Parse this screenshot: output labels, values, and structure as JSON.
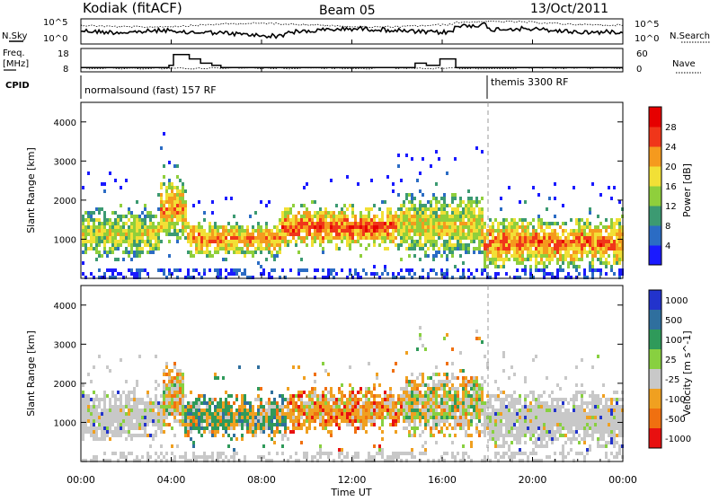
{
  "header": {
    "station": "Kodiak (fitACF)",
    "beam": "Beam 05",
    "date": "13/Oct/2011"
  },
  "top_panels": {
    "nsky_label": "N.Sky",
    "nsearch_label": "N.Search",
    "noise_ticks": [
      "10^5",
      "10^0"
    ],
    "freq_label_1": "Freq.",
    "freq_label_2": "[MHz]",
    "freq_ticks": [
      "18",
      "8"
    ],
    "nave_label": "Nave",
    "nave_ticks": [
      "60",
      "0"
    ],
    "cpid_label": "CPID",
    "cpid_segments": [
      {
        "name": "normalsound (fast) 157 RF",
        "start_hour": 0
      },
      {
        "name": "themis 3300 RF",
        "start_hour": 18
      }
    ],
    "freq_steps": [
      [
        0,
        10
      ],
      [
        3.9,
        11
      ],
      [
        4.1,
        16
      ],
      [
        4.8,
        14
      ],
      [
        5.3,
        12
      ],
      [
        5.8,
        11
      ],
      [
        6.2,
        10
      ],
      [
        14,
        10
      ],
      [
        14.8,
        12
      ],
      [
        15.3,
        11
      ],
      [
        15.9,
        14
      ],
      [
        16.6,
        10
      ],
      [
        18,
        10
      ],
      [
        24,
        10
      ]
    ]
  },
  "chart_data": [
    {
      "type": "heatmap",
      "title": "",
      "quantity": "Power",
      "ylabel": "Slant Range [km]",
      "xlabel": "",
      "ylim": [
        0,
        4500
      ],
      "yticks": [
        "1000",
        "2000",
        "3000",
        "4000"
      ],
      "xlim": [
        0,
        24
      ],
      "colorbar": {
        "label": "Power [dB]",
        "ticks": [
          "4",
          "8",
          "12",
          "16",
          "20",
          "24",
          "28"
        ],
        "colors": [
          "#1a1aff",
          "#2b6cc4",
          "#3c9a72",
          "#8fcf3c",
          "#f2e036",
          "#f59a1e",
          "#f0361a",
          "#e60000"
        ]
      },
      "echo_bands": [
        {
          "x0": 0.0,
          "x1": 3.5,
          "center_km": 1200,
          "width_km": 700,
          "level": 0.55
        },
        {
          "x0": 3.5,
          "x1": 4.6,
          "center_km": 1800,
          "width_km": 900,
          "level": 0.7
        },
        {
          "x0": 4.6,
          "x1": 8.8,
          "center_km": 1050,
          "width_km": 500,
          "level": 0.75
        },
        {
          "x0": 8.8,
          "x1": 14.0,
          "center_km": 1350,
          "width_km": 600,
          "level": 0.85
        },
        {
          "x0": 14.0,
          "x1": 17.8,
          "center_km": 1400,
          "width_km": 900,
          "level": 0.6
        },
        {
          "x0": 17.8,
          "x1": 24.0,
          "center_km": 950,
          "width_km": 700,
          "level": 0.8
        }
      ]
    },
    {
      "type": "heatmap",
      "title": "",
      "quantity": "Velocity",
      "ylabel": "Slant Range [km]",
      "xlabel": "Time UT",
      "ylim": [
        0,
        4500
      ],
      "yticks": [
        "1000",
        "2000",
        "3000",
        "4000"
      ],
      "xlim": [
        0,
        24
      ],
      "xticks": [
        "00:00",
        "04:00",
        "08:00",
        "12:00",
        "16:00",
        "20:00",
        "00:00"
      ],
      "colorbar": {
        "label": "Velocity [m s^-1]",
        "ticks": [
          "1000",
          "500",
          "100",
          "25",
          "-25",
          "-100",
          "-500",
          "-1000"
        ],
        "colors": [
          "#2233cc",
          "#2f6f9e",
          "#2f9a5a",
          "#88d040",
          "#c8c8c8",
          "#f0a020",
          "#f07010",
          "#e81010"
        ]
      },
      "echo_bands": [
        {
          "x0": 0.0,
          "x1": 3.6,
          "center_km": 1200,
          "width_km": 700,
          "level": 0.45
        },
        {
          "x0": 3.6,
          "x1": 4.5,
          "center_km": 1700,
          "width_km": 900,
          "level": 0.7
        },
        {
          "x0": 4.5,
          "x1": 9.0,
          "center_km": 1200,
          "width_km": 600,
          "level": 0.75
        },
        {
          "x0": 9.0,
          "x1": 14.2,
          "center_km": 1350,
          "width_km": 600,
          "level": 0.7
        },
        {
          "x0": 14.2,
          "x1": 17.8,
          "center_km": 1500,
          "width_km": 900,
          "level": 0.55
        },
        {
          "x0": 17.8,
          "x1": 24.0,
          "center_km": 1100,
          "width_km": 800,
          "level": 0.45
        }
      ]
    }
  ]
}
